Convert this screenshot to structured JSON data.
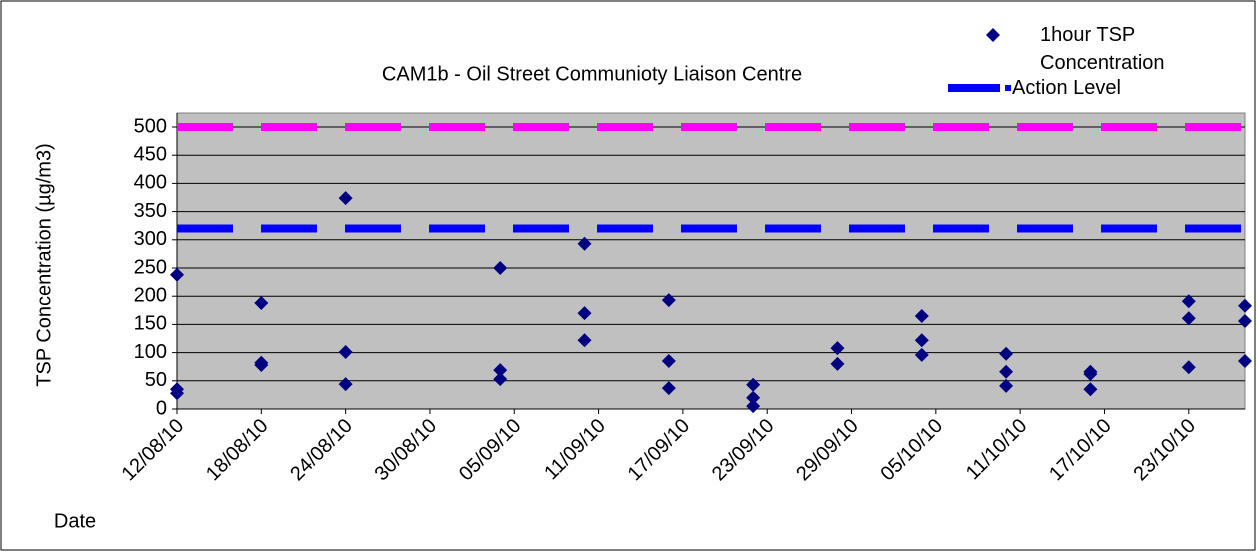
{
  "chart_data": {
    "type": "scatter",
    "title": "CAM1b - Oil Street Communioty Liaison Centre",
    "x_label": "Date",
    "y_label": "TSP Concentration (µg/m3)",
    "series": [
      {
        "name": "1hour TSP Concentration",
        "color": "#000080",
        "x": [
          "12/08/10",
          "12/08/10",
          "12/08/10",
          "18/08/10",
          "18/08/10",
          "18/08/10",
          "24/08/10",
          "24/08/10",
          "24/08/10",
          "04/09/10",
          "04/09/10",
          "04/09/10",
          "10/09/10",
          "10/09/10",
          "10/09/10",
          "16/09/10",
          "16/09/10",
          "16/09/10",
          "22/09/10",
          "22/09/10",
          "22/09/10",
          "28/09/10",
          "28/09/10",
          "04/10/10",
          "04/10/10",
          "04/10/10",
          "10/10/10",
          "10/10/10",
          "10/10/10",
          "16/10/10",
          "16/10/10",
          "16/10/10",
          "23/10/10",
          "23/10/10",
          "23/10/10",
          "27/10/10",
          "27/10/10",
          "27/10/10"
        ],
        "values": [
          238,
          35,
          28,
          188,
          82,
          78,
          374,
          101,
          44,
          250,
          69,
          53,
          293,
          170,
          122,
          193,
          85,
          37,
          43,
          20,
          5,
          108,
          80,
          165,
          122,
          96,
          98,
          66,
          41,
          66,
          62,
          35,
          191,
          161,
          74,
          183,
          156,
          85
        ]
      }
    ],
    "reference_lines": [
      {
        "name": "Action Level",
        "value": 320,
        "color": "#0000ff"
      },
      {
        "value": 500,
        "color": "#ff00ff"
      }
    ],
    "xlim": [
      "12/08/10",
      "27/10/10"
    ],
    "xticks": [
      "12/08/10",
      "18/08/10",
      "24/08/10",
      "30/08/10",
      "05/09/10",
      "11/09/10",
      "17/09/10",
      "23/09/10",
      "29/09/10",
      "05/10/10",
      "11/10/10",
      "17/10/10",
      "23/10/10"
    ],
    "ylim": [
      0,
      500
    ],
    "yticks": [
      0,
      50,
      100,
      150,
      200,
      250,
      300,
      350,
      400,
      450,
      500
    ],
    "grid": true,
    "plot_background": "#c0c0c0"
  }
}
